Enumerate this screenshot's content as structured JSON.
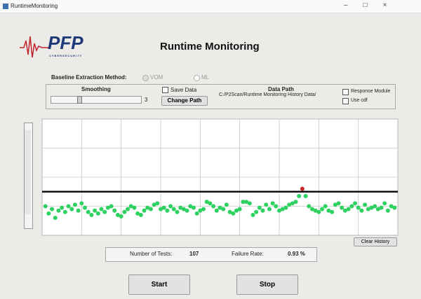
{
  "window": {
    "title": "RuntimeMonitoring"
  },
  "logo": {
    "name": "PFP",
    "tagline": "CYBERSECURITY"
  },
  "header": {
    "title": "Runtime Monitoring"
  },
  "baseline": {
    "label": "Baseline Extraction Method:",
    "options": [
      "VOM",
      "ML"
    ]
  },
  "smoothing": {
    "label": "Smoothing",
    "value": 3
  },
  "save_data": {
    "label": "Save Data"
  },
  "change_path": {
    "label": "Change Path"
  },
  "data_path": {
    "label": "Data Path",
    "value": "C:/P2Scan/Runtime Monitoring History Data/"
  },
  "options": [
    "Response Module",
    "Use cdf"
  ],
  "chart_data": {
    "type": "scatter",
    "x": [
      1,
      2,
      3,
      4,
      5,
      6,
      7,
      8,
      9,
      10,
      11,
      12,
      13,
      14,
      15,
      16,
      17,
      18,
      19,
      20,
      21,
      22,
      23,
      24,
      25,
      26,
      27,
      28,
      29,
      30,
      31,
      32,
      33,
      34,
      35,
      36,
      37,
      38,
      39,
      40,
      41,
      42,
      43,
      44,
      45,
      46,
      47,
      48,
      49,
      50,
      51,
      52,
      53,
      54,
      55,
      56,
      57,
      58,
      59,
      60,
      61,
      62,
      63,
      64,
      65,
      66,
      67,
      68,
      69,
      70,
      71,
      72,
      73,
      74,
      75,
      76,
      77,
      78,
      79,
      80,
      81,
      82,
      83,
      84,
      85,
      86,
      87,
      88,
      89,
      90,
      91,
      92,
      93,
      94,
      95,
      96,
      97,
      98,
      99,
      100,
      101,
      102,
      103,
      104,
      105,
      106,
      107
    ],
    "values": [
      1.0,
      0.75,
      0.9,
      0.6,
      0.85,
      0.95,
      0.8,
      1.0,
      0.9,
      1.05,
      0.85,
      1.1,
      0.95,
      0.8,
      0.7,
      0.85,
      0.75,
      0.9,
      0.8,
      0.95,
      1.0,
      0.85,
      0.7,
      0.65,
      0.8,
      0.9,
      1.0,
      0.95,
      0.75,
      0.7,
      0.85,
      0.95,
      0.9,
      1.05,
      1.1,
      0.9,
      0.95,
      0.85,
      1.0,
      0.9,
      0.8,
      0.95,
      0.9,
      0.85,
      1.0,
      0.95,
      0.75,
      0.85,
      0.9,
      1.15,
      1.1,
      1.0,
      0.85,
      0.95,
      0.9,
      1.05,
      0.8,
      0.75,
      0.85,
      0.9,
      1.15,
      1.15,
      1.1,
      0.7,
      0.8,
      0.95,
      0.85,
      1.05,
      0.9,
      1.1,
      1.0,
      0.85,
      0.9,
      0.95,
      1.05,
      1.1,
      1.15,
      1.35,
      1.6,
      1.35,
      1.0,
      0.9,
      0.85,
      0.8,
      0.9,
      1.0,
      0.85,
      0.8,
      1.05,
      1.1,
      0.95,
      0.85,
      0.9,
      1.0,
      1.1,
      0.95,
      0.85,
      1.05,
      0.9,
      0.95,
      1.0,
      0.9,
      0.95,
      1.1,
      0.85,
      1.0,
      0.95
    ],
    "threshold": 1.5,
    "xlim": [
      0,
      108
    ],
    "ylim": [
      0,
      4
    ],
    "xticks": [
      0,
      12,
      24,
      36,
      48,
      60,
      72,
      84,
      96,
      108
    ],
    "yticks": [
      0,
      1,
      2,
      3,
      4
    ],
    "grid": true,
    "color": "#2fd160",
    "alarm_color": "#c8262c",
    "threshold_color": "#111111"
  },
  "clear_history": {
    "label": "Clear History"
  },
  "stats": {
    "tests_label": "Number of Tests:",
    "tests": 107,
    "failure_label": "Failure Rate:",
    "failure_rate": "0.93 %"
  },
  "buttons": [
    "Start",
    "Stop"
  ]
}
